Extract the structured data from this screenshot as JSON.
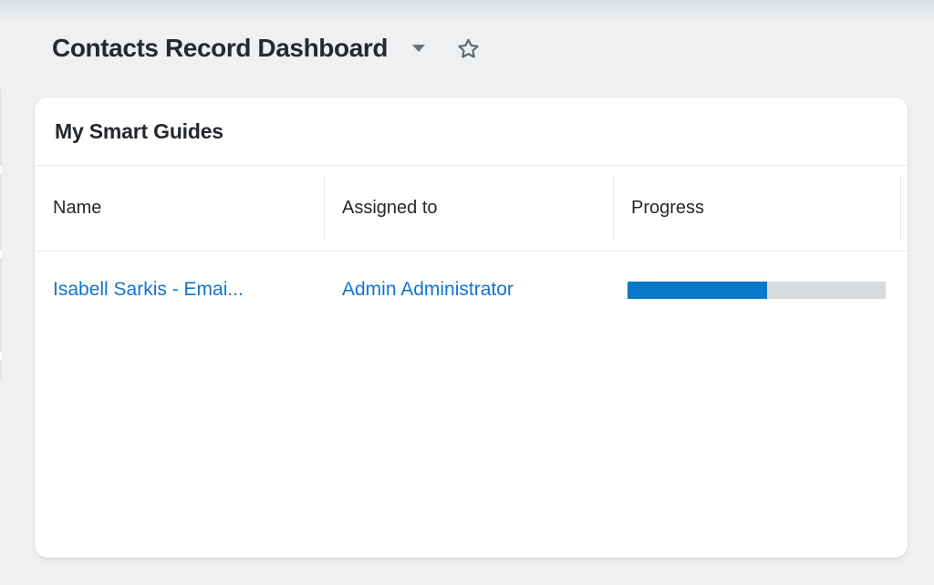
{
  "page": {
    "title": "Contacts Record Dashboard"
  },
  "header_icons": {
    "dropdown": "chevron-down-icon",
    "favorite": "star-outline-icon"
  },
  "widget": {
    "title": "My Smart Guides",
    "table": {
      "columns": [
        "Name",
        "Assigned to",
        "Progress"
      ],
      "rows": [
        {
          "name": "Isabell Sarkis - Emai...",
          "assigned_to": "Admin Administrator",
          "progress_percent": 54
        }
      ]
    }
  },
  "colors": {
    "page_background": "#eef0f2",
    "card_background": "#ffffff",
    "title_text": "#26292e",
    "link_blue": "#1174d0",
    "progress_fill": "#0a78c8",
    "progress_track": "#d8dbde"
  }
}
